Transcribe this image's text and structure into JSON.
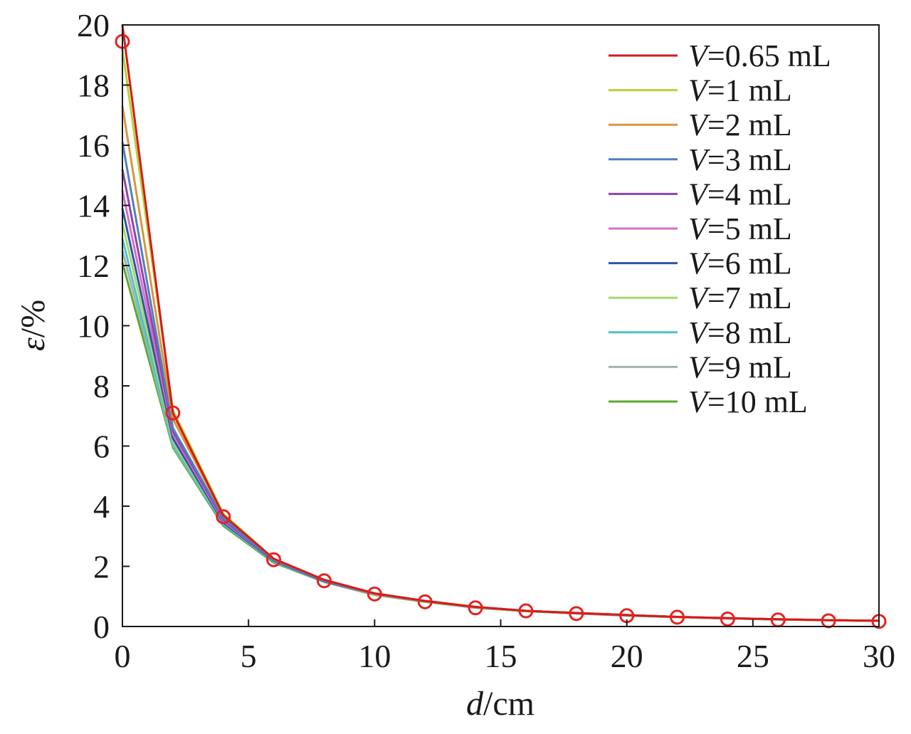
{
  "chart_data": {
    "type": "line",
    "xlabel": {
      "var": "d",
      "unit": "/cm"
    },
    "ylabel": {
      "var": "ε",
      "unit": "/%"
    },
    "xlim": [
      0,
      30
    ],
    "ylim": [
      0,
      20
    ],
    "xticks": [
      "0",
      "5",
      "10",
      "15",
      "20",
      "25",
      "30"
    ],
    "yticks": [
      "0",
      "2",
      "4",
      "6",
      "8",
      "10",
      "12",
      "14",
      "16",
      "18",
      "20"
    ],
    "grid": false,
    "legend_position": "top-right",
    "x": [
      0,
      2,
      4,
      6,
      8,
      10,
      12,
      14,
      16,
      18,
      20,
      22,
      24,
      26,
      28,
      30
    ],
    "series": [
      {
        "name": "=0.65 mL",
        "color": "#d7191c",
        "values": [
          20.0,
          7.1,
          3.7,
          2.25,
          1.55,
          1.1,
          0.85,
          0.65,
          0.52,
          0.45,
          0.38,
          0.32,
          0.28,
          0.24,
          0.21,
          0.19
        ]
      },
      {
        "name": "=1 mL",
        "color": "#b5d334",
        "values": [
          19.2,
          7.2,
          3.75,
          2.25,
          1.55,
          1.1,
          0.85,
          0.65,
          0.52,
          0.45,
          0.38,
          0.32,
          0.28,
          0.24,
          0.21,
          0.19
        ]
      },
      {
        "name": "=2 mL",
        "color": "#d99640",
        "values": [
          17.3,
          6.9,
          3.7,
          2.25,
          1.55,
          1.1,
          0.85,
          0.65,
          0.52,
          0.45,
          0.38,
          0.32,
          0.28,
          0.24,
          0.21,
          0.19
        ]
      },
      {
        "name": "=3 mL",
        "color": "#4f81bd",
        "values": [
          16.1,
          6.6,
          3.6,
          2.2,
          1.52,
          1.1,
          0.85,
          0.65,
          0.52,
          0.45,
          0.38,
          0.32,
          0.28,
          0.24,
          0.21,
          0.19
        ]
      },
      {
        "name": "=4 mL",
        "color": "#8e44ad",
        "values": [
          15.2,
          6.5,
          3.55,
          2.2,
          1.52,
          1.1,
          0.85,
          0.65,
          0.52,
          0.45,
          0.38,
          0.32,
          0.28,
          0.24,
          0.21,
          0.19
        ]
      },
      {
        "name": "=5 mL",
        "color": "#d26fc9",
        "values": [
          14.5,
          6.4,
          3.5,
          2.2,
          1.52,
          1.08,
          0.84,
          0.64,
          0.52,
          0.44,
          0.37,
          0.32,
          0.27,
          0.24,
          0.21,
          0.19
        ]
      },
      {
        "name": "=6 mL",
        "color": "#2e56a8",
        "values": [
          13.9,
          6.25,
          3.45,
          2.18,
          1.5,
          1.08,
          0.84,
          0.64,
          0.52,
          0.44,
          0.37,
          0.32,
          0.27,
          0.24,
          0.21,
          0.19
        ]
      },
      {
        "name": "=7 mL",
        "color": "#a6d96a",
        "values": [
          13.4,
          6.15,
          3.45,
          2.17,
          1.5,
          1.07,
          0.83,
          0.63,
          0.51,
          0.44,
          0.37,
          0.31,
          0.27,
          0.24,
          0.21,
          0.19
        ]
      },
      {
        "name": "=8 mL",
        "color": "#4ec2c9",
        "values": [
          12.9,
          6.05,
          3.4,
          2.15,
          1.5,
          1.07,
          0.83,
          0.63,
          0.51,
          0.44,
          0.37,
          0.31,
          0.27,
          0.24,
          0.21,
          0.19
        ]
      },
      {
        "name": "=9 mL",
        "color": "#9fb5a8",
        "values": [
          12.5,
          6.0,
          3.4,
          2.15,
          1.48,
          1.06,
          0.83,
          0.63,
          0.51,
          0.44,
          0.37,
          0.31,
          0.27,
          0.24,
          0.21,
          0.19
        ]
      },
      {
        "name": "=10 mL",
        "color": "#5aa832",
        "values": [
          12.1,
          5.95,
          3.35,
          2.12,
          1.48,
          1.05,
          0.82,
          0.62,
          0.51,
          0.43,
          0.36,
          0.31,
          0.27,
          0.23,
          0.21,
          0.19
        ]
      }
    ],
    "legend_prefix": "V",
    "markers": {
      "style": "open-circle",
      "color": "#e32222",
      "x": [
        0,
        2,
        4,
        6,
        8,
        10,
        12,
        14,
        16,
        18,
        20,
        22,
        24,
        26,
        28,
        30
      ],
      "y": [
        19.45,
        7.1,
        3.65,
        2.22,
        1.52,
        1.08,
        0.82,
        0.62,
        0.52,
        0.43,
        0.36,
        0.31,
        0.25,
        0.22,
        0.19,
        0.17
      ]
    }
  }
}
